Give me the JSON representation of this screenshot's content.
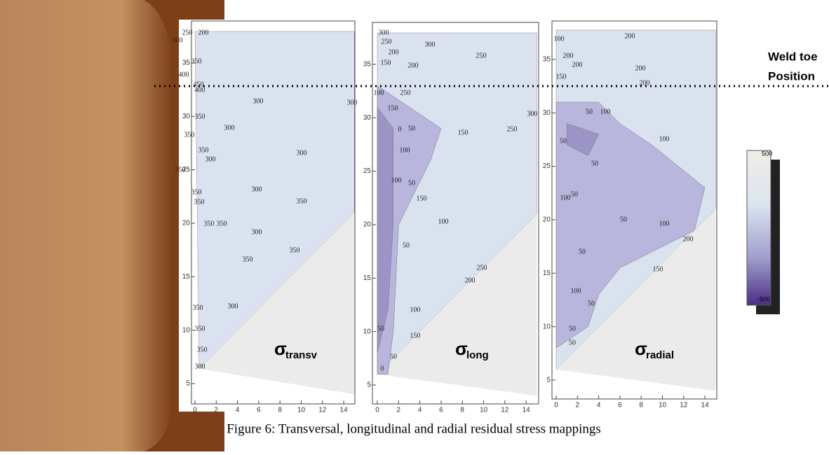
{
  "figure": {
    "annotation": {
      "line1": "Weld toe",
      "line2": "Position"
    },
    "caption": "Figure 6: Transversal, longitudinal and radial residual stress mappings",
    "colorbar": {
      "max": "500",
      "min": "-500"
    },
    "panels": [
      {
        "symbol": "σ",
        "subscript": "transv",
        "xticks": [
          0,
          2,
          4,
          6,
          8,
          10,
          12,
          14
        ],
        "yticks": [
          5,
          10,
          15,
          20,
          25,
          30,
          35
        ],
        "contour_labels": [
          250,
          200,
          300,
          350,
          400,
          450,
          400,
          300,
          300,
          350,
          300,
          350,
          350,
          300,
          300,
          350,
          350,
          300,
          350,
          350,
          350,
          350,
          300,
          350,
          350,
          350,
          300,
          350,
          350,
          300
        ]
      },
      {
        "symbol": "σ",
        "subscript": "long",
        "xticks": [
          0,
          2,
          4,
          6,
          8,
          10,
          12,
          14
        ],
        "yticks": [
          5,
          10,
          15,
          20,
          25,
          30,
          35
        ],
        "contour_labels": [
          300,
          250,
          200,
          150,
          300,
          250,
          200,
          250,
          100,
          150,
          0,
          50,
          150,
          100,
          100,
          50,
          150,
          100,
          50,
          250,
          200,
          100,
          150,
          50,
          50,
          0,
          300,
          250
        ]
      },
      {
        "symbol": "σ",
        "subscript": "radial",
        "xticks": [
          0,
          2,
          4,
          6,
          8,
          10,
          12,
          14
        ],
        "yticks": [
          5,
          10,
          15,
          20,
          25,
          30,
          35
        ],
        "contour_labels": [
          100,
          200,
          200,
          200,
          150,
          200,
          200,
          50,
          100,
          50,
          100,
          50,
          50,
          100,
          50,
          100,
          50,
          200,
          150,
          100,
          50,
          50,
          50
        ]
      }
    ]
  }
}
